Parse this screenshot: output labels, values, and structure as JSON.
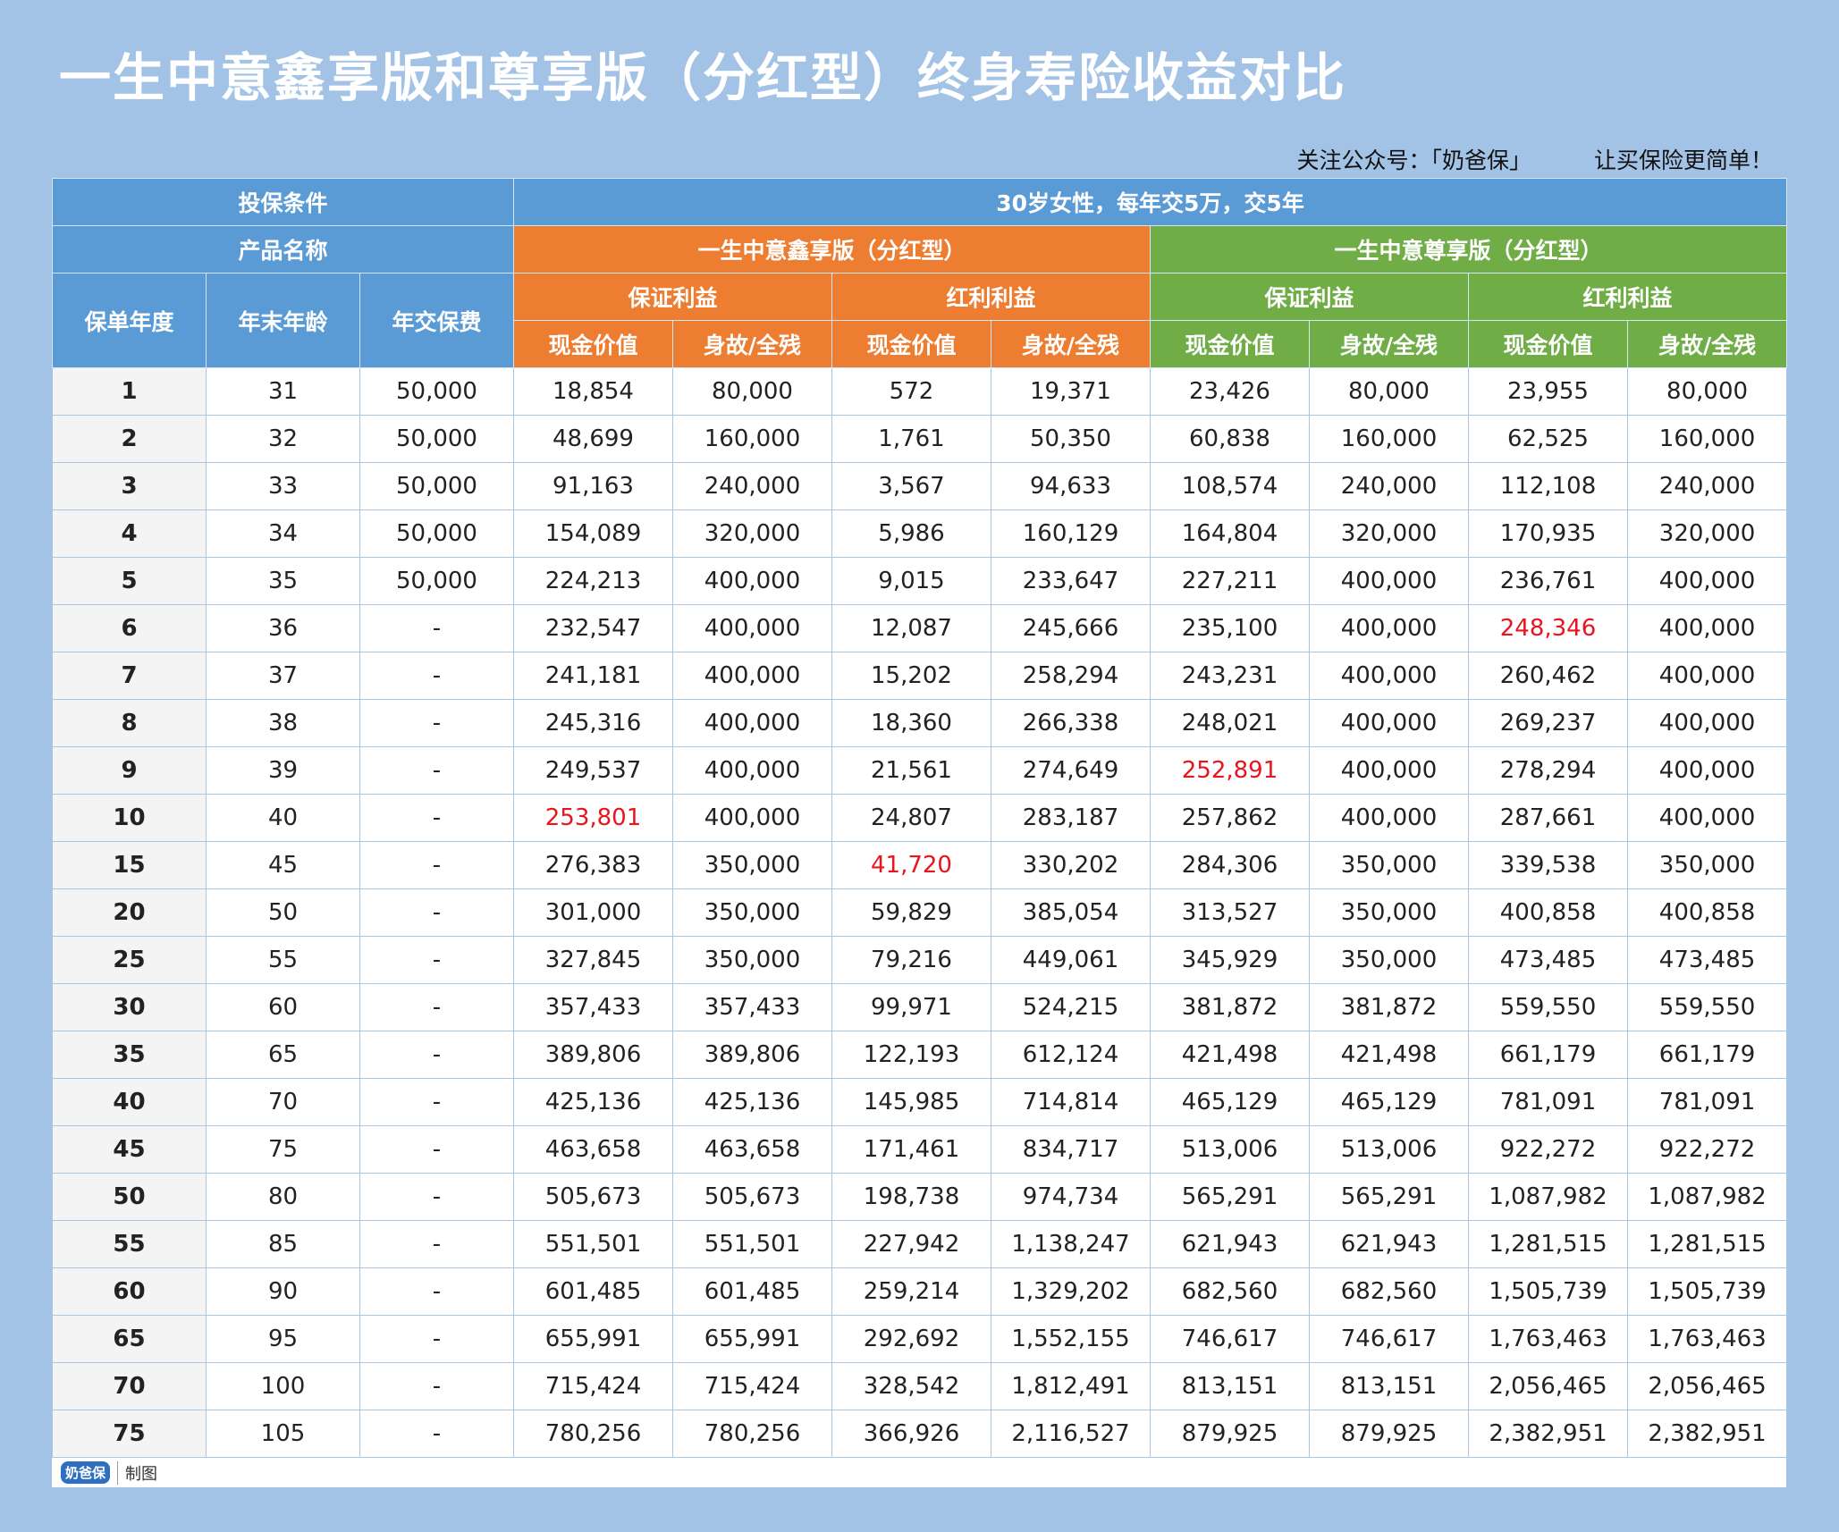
{
  "title": "一生中意鑫享版和尊享版（分红型）终身寿险收益对比",
  "subtitle": {
    "left": "关注公众号：「奶爸保」",
    "right": "让买保险更简单！"
  },
  "header": {
    "condition_label": "投保条件",
    "condition": "30岁女性，每年交5万，交5年",
    "product_label": "产品名称",
    "product_a": "一生中意鑫享版（分红型）",
    "product_b": "一生中意尊享版（分红型）",
    "columns": [
      "保单年度",
      "年末年龄",
      "年交保费"
    ],
    "groups": [
      "保证利益",
      "红利利益",
      "保证利益",
      "红利利益"
    ],
    "subcolumns": [
      "现金价值",
      "身故/全残",
      "现金价值",
      "身故/全残",
      "现金价值",
      "身故/全残",
      "现金价值",
      "身故/全残"
    ]
  },
  "table": {
    "highlight_color": "#e8141e",
    "highlights": [
      {
        "row": 5,
        "col": 9
      },
      {
        "row": 8,
        "col": 7
      },
      {
        "row": 9,
        "col": 3
      },
      {
        "row": 10,
        "col": 5
      }
    ],
    "rows": [
      [
        "1",
        "31",
        "50,000",
        "18,854",
        "80,000",
        "572",
        "19,371",
        "23,426",
        "80,000",
        "23,955",
        "80,000"
      ],
      [
        "2",
        "32",
        "50,000",
        "48,699",
        "160,000",
        "1,761",
        "50,350",
        "60,838",
        "160,000",
        "62,525",
        "160,000"
      ],
      [
        "3",
        "33",
        "50,000",
        "91,163",
        "240,000",
        "3,567",
        "94,633",
        "108,574",
        "240,000",
        "112,108",
        "240,000"
      ],
      [
        "4",
        "34",
        "50,000",
        "154,089",
        "320,000",
        "5,986",
        "160,129",
        "164,804",
        "320,000",
        "170,935",
        "320,000"
      ],
      [
        "5",
        "35",
        "50,000",
        "224,213",
        "400,000",
        "9,015",
        "233,647",
        "227,211",
        "400,000",
        "236,761",
        "400,000"
      ],
      [
        "6",
        "36",
        "-",
        "232,547",
        "400,000",
        "12,087",
        "245,666",
        "235,100",
        "400,000",
        "248,346",
        "400,000"
      ],
      [
        "7",
        "37",
        "-",
        "241,181",
        "400,000",
        "15,202",
        "258,294",
        "243,231",
        "400,000",
        "260,462",
        "400,000"
      ],
      [
        "8",
        "38",
        "-",
        "245,316",
        "400,000",
        "18,360",
        "266,338",
        "248,021",
        "400,000",
        "269,237",
        "400,000"
      ],
      [
        "9",
        "39",
        "-",
        "249,537",
        "400,000",
        "21,561",
        "274,649",
        "252,891",
        "400,000",
        "278,294",
        "400,000"
      ],
      [
        "10",
        "40",
        "-",
        "253,801",
        "400,000",
        "24,807",
        "283,187",
        "257,862",
        "400,000",
        "287,661",
        "400,000"
      ],
      [
        "15",
        "45",
        "-",
        "276,383",
        "350,000",
        "41,720",
        "330,202",
        "284,306",
        "350,000",
        "339,538",
        "350,000"
      ],
      [
        "20",
        "50",
        "-",
        "301,000",
        "350,000",
        "59,829",
        "385,054",
        "313,527",
        "350,000",
        "400,858",
        "400,858"
      ],
      [
        "25",
        "55",
        "-",
        "327,845",
        "350,000",
        "79,216",
        "449,061",
        "345,929",
        "350,000",
        "473,485",
        "473,485"
      ],
      [
        "30",
        "60",
        "-",
        "357,433",
        "357,433",
        "99,971",
        "524,215",
        "381,872",
        "381,872",
        "559,550",
        "559,550"
      ],
      [
        "35",
        "65",
        "-",
        "389,806",
        "389,806",
        "122,193",
        "612,124",
        "421,498",
        "421,498",
        "661,179",
        "661,179"
      ],
      [
        "40",
        "70",
        "-",
        "425,136",
        "425,136",
        "145,985",
        "714,814",
        "465,129",
        "465,129",
        "781,091",
        "781,091"
      ],
      [
        "45",
        "75",
        "-",
        "463,658",
        "463,658",
        "171,461",
        "834,717",
        "513,006",
        "513,006",
        "922,272",
        "922,272"
      ],
      [
        "50",
        "80",
        "-",
        "505,673",
        "505,673",
        "198,738",
        "974,734",
        "565,291",
        "565,291",
        "1,087,982",
        "1,087,982"
      ],
      [
        "55",
        "85",
        "-",
        "551,501",
        "551,501",
        "227,942",
        "1,138,247",
        "621,943",
        "621,943",
        "1,281,515",
        "1,281,515"
      ],
      [
        "60",
        "90",
        "-",
        "601,485",
        "601,485",
        "259,214",
        "1,329,202",
        "682,560",
        "682,560",
        "1,505,739",
        "1,505,739"
      ],
      [
        "65",
        "95",
        "-",
        "655,991",
        "655,991",
        "292,692",
        "1,552,155",
        "746,617",
        "746,617",
        "1,763,463",
        "1,763,463"
      ],
      [
        "70",
        "100",
        "-",
        "715,424",
        "715,424",
        "328,542",
        "1,812,491",
        "813,151",
        "813,151",
        "2,056,465",
        "2,056,465"
      ],
      [
        "75",
        "105",
        "-",
        "780,256",
        "780,256",
        "366,926",
        "2,116,527",
        "879,925",
        "879,925",
        "2,382,951",
        "2,382,951"
      ]
    ]
  },
  "footer": {
    "logo": "奶爸保",
    "text": "制图"
  }
}
